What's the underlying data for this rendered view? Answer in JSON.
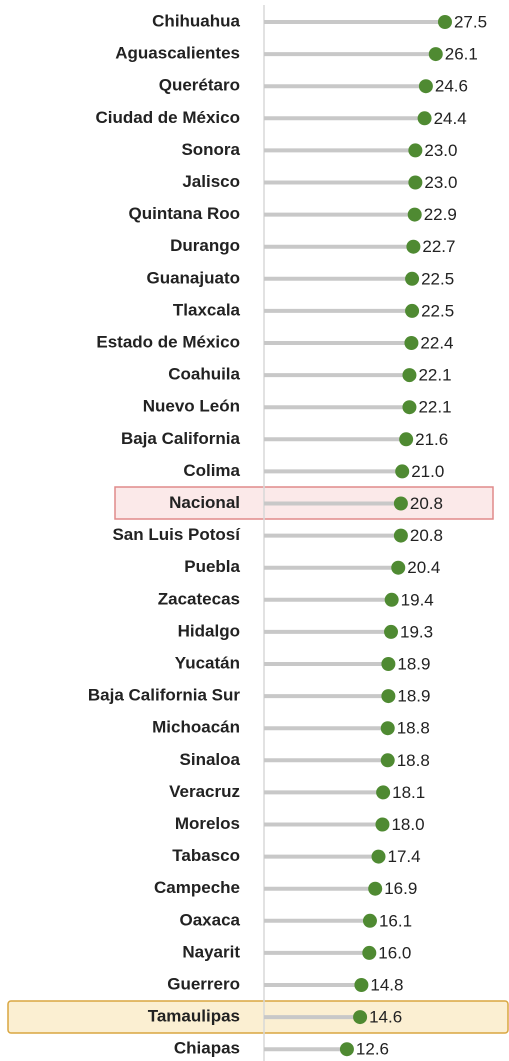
{
  "chart_data": {
    "type": "lollipop",
    "categories": [
      "Chihuahua",
      "Aguascalientes",
      "Querétaro",
      "Ciudad de México",
      "Sonora",
      "Jalisco",
      "Quintana Roo",
      "Durango",
      "Guanajuato",
      "Tlaxcala",
      "Estado de México",
      "Coahuila",
      "Nuevo León",
      "Baja California",
      "Colima",
      "Nacional",
      "San Luis Potosí",
      "Puebla",
      "Zacatecas",
      "Hidalgo",
      "Yucatán",
      "Baja California Sur",
      "Michoacán",
      "Sinaloa",
      "Veracruz",
      "Morelos",
      "Tabasco",
      "Campeche",
      "Oaxaca",
      "Nayarit",
      "Guerrero",
      "Tamaulipas",
      "Chiapas"
    ],
    "values": [
      27.5,
      26.1,
      24.6,
      24.4,
      23.0,
      23.0,
      22.9,
      22.7,
      22.5,
      22.5,
      22.4,
      22.1,
      22.1,
      21.6,
      21.0,
      20.8,
      20.8,
      20.4,
      19.4,
      19.3,
      18.9,
      18.9,
      18.8,
      18.8,
      18.1,
      18.0,
      17.4,
      16.9,
      16.1,
      16.0,
      14.8,
      14.6,
      12.6
    ],
    "value_labels": [
      "27.5",
      "26.1",
      "24.6",
      "24.4",
      "23.0",
      "23.0",
      "22.9",
      "22.7",
      "22.5",
      "22.5",
      "22.4",
      "22.1",
      "22.1",
      "21.6",
      "21.0",
      "20.8",
      "20.8",
      "20.4",
      "19.4",
      "19.3",
      "18.9",
      "18.9",
      "18.8",
      "18.8",
      "18.1",
      "18.0",
      "17.4",
      "16.9",
      "16.1",
      "16.0",
      "14.8",
      "14.6",
      "12.6"
    ],
    "color": "#4f8a32",
    "xlim": [
      0,
      37
    ]
  }
}
